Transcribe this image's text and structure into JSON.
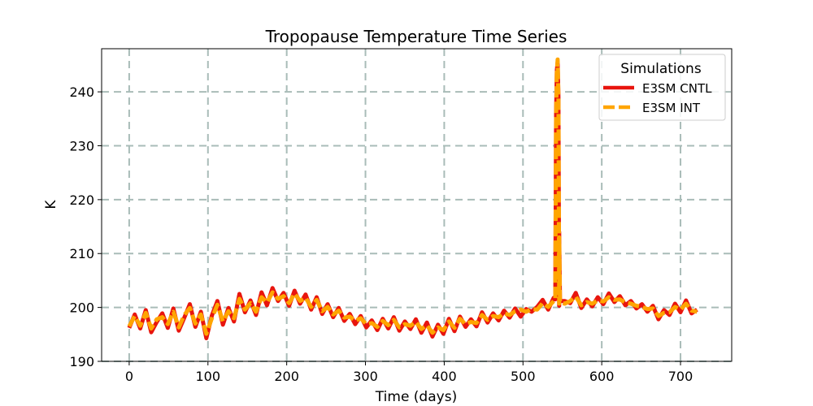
{
  "chart_data": {
    "type": "line",
    "title": "Tropopause Temperature Time Series",
    "xlabel": "Time (days)",
    "ylabel": "K",
    "xlim": [
      -35,
      765
    ],
    "ylim": [
      190,
      248
    ],
    "xticks": [
      0,
      100,
      200,
      300,
      400,
      500,
      600,
      700
    ],
    "yticks": [
      190,
      200,
      210,
      220,
      230,
      240
    ],
    "xtick_labels": [
      "0",
      "100",
      "200",
      "300",
      "400",
      "500",
      "600",
      "700"
    ],
    "ytick_labels": [
      "190",
      "200",
      "210",
      "220",
      "230",
      "240"
    ],
    "grid": true,
    "legend": {
      "title": "Simulations",
      "location": "top-right"
    },
    "colors": {
      "cntl": "#e8150e",
      "int": "#ffa500",
      "grid": "#a9bcb8"
    },
    "x_start": 0,
    "x_step": 7,
    "series": [
      {
        "name": "E3SM CNTL",
        "style": "solid",
        "color": "#e8150e",
        "values": [
          196.2,
          198.7,
          196.1,
          199.5,
          195.4,
          197.3,
          198.9,
          196.2,
          199.8,
          195.7,
          198.1,
          200.6,
          196.4,
          199.2,
          194.3,
          198.5,
          201.2,
          196.8,
          199.9,
          197.4,
          202.5,
          199.1,
          201.3,
          198.6,
          202.8,
          200.4,
          203.6,
          201.2,
          202.7,
          200.3,
          203.1,
          200.7,
          202.4,
          199.6,
          201.9,
          198.8,
          200.6,
          198.2,
          199.9,
          197.5,
          198.8,
          196.9,
          198.4,
          196.3,
          197.6,
          195.8,
          197.9,
          196.1,
          198.2,
          195.7,
          197.4,
          196.0,
          197.8,
          195.3,
          197.2,
          194.6,
          196.8,
          195.1,
          197.9,
          195.6,
          198.3,
          196.4,
          197.8,
          196.5,
          199.1,
          197.2,
          198.9,
          197.6,
          199.4,
          198.1,
          199.8,
          198.3,
          199.7,
          199.2,
          200.1,
          201.4,
          199.6,
          201.8,
          200.3,
          201.2,
          200.8,
          202.7,
          199.9,
          201.5,
          200.2,
          201.9,
          200.6,
          202.6,
          201.0,
          202.1,
          200.4,
          201.2,
          199.8,
          200.6,
          199.2,
          200.3,
          197.8,
          199.5,
          198.6,
          200.7,
          199.1,
          201.3,
          198.9,
          199.6
        ]
      },
      {
        "name": "E3SM INT",
        "style": "dashed",
        "color": "#ffa500",
        "values": [
          196.5,
          198.4,
          196.6,
          199.0,
          196.1,
          197.8,
          198.2,
          196.9,
          199.2,
          196.3,
          198.6,
          199.9,
          197.0,
          198.7,
          195.1,
          198.0,
          200.5,
          197.4,
          199.3,
          198.0,
          201.6,
          199.6,
          200.8,
          199.2,
          201.9,
          200.9,
          202.8,
          201.6,
          202.1,
          200.8,
          202.6,
          201.2,
          201.8,
          200.1,
          201.4,
          199.3,
          200.1,
          198.7,
          199.4,
          198.1,
          198.3,
          197.5,
          198.0,
          196.9,
          197.1,
          196.4,
          197.5,
          196.7,
          197.7,
          196.3,
          196.9,
          196.6,
          197.3,
          196.0,
          196.7,
          195.3,
          196.3,
          195.8,
          197.4,
          196.2,
          197.9,
          196.9,
          197.3,
          197.1,
          198.6,
          197.7,
          198.4,
          198.2,
          198.9,
          198.6,
          199.3,
          199.6,
          199.2,
          199.7,
          199.6,
          200.8,
          200.1,
          201.2,
          200.7,
          200.7,
          201.2,
          202.0,
          200.4,
          201.0,
          200.7,
          201.3,
          201.1,
          201.9,
          201.4,
          201.5,
          200.9,
          200.7,
          200.3,
          200.1,
          199.7,
          199.8,
          198.4,
          199.0,
          199.1,
          200.1,
          199.6,
          200.7,
          199.4,
          199.2
        ]
      }
    ],
    "spikes": [
      {
        "series": "E3SM CNTL",
        "x": [
          541,
          542,
          543,
          544,
          545,
          546,
          547
        ],
        "values": [
          201.5,
          236.0,
          244.0,
          245.5,
          239.0,
          214.0,
          201.2
        ]
      },
      {
        "series": "E3SM INT",
        "x": [
          541,
          542,
          543,
          544,
          545,
          546,
          547
        ],
        "values": [
          201.3,
          235.0,
          243.5,
          246.0,
          238.5,
          213.0,
          201.0
        ]
      }
    ]
  }
}
